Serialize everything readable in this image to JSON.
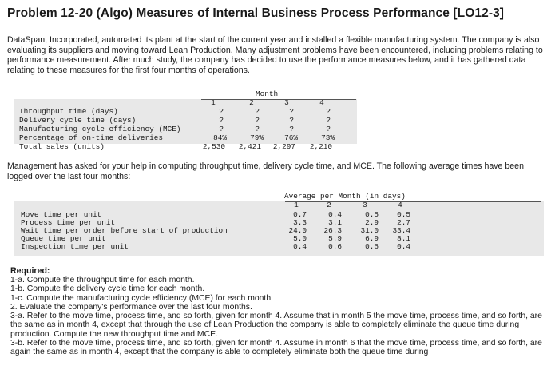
{
  "title": "Problem 12-20 (Algo) Measures of Internal Business Process Performance [LO12-3]",
  "intro": "DataSpan, Incorporated, automated its plant at the start of the current year and installed a flexible manufacturing system. The company is also evaluating its suppliers and moving toward Lean Production. Many adjustment problems have been encountered, including problems relating to performance measurement. After much study, the company has decided to use the performance measures below, and it has gathered data relating to these measures for the first four months of operations.",
  "table1": {
    "group_header": "Month",
    "months": [
      "1",
      "2",
      "3",
      "4"
    ],
    "rows": [
      {
        "label": "Throughput time (days)",
        "values": [
          "?",
          "?",
          "?",
          "?"
        ]
      },
      {
        "label": "Delivery cycle time (days)",
        "values": [
          "?",
          "?",
          "?",
          "?"
        ]
      },
      {
        "label": "Manufacturing cycle efficiency (MCE)",
        "values": [
          "?",
          "?",
          "?",
          "?"
        ]
      },
      {
        "label": "Percentage of on-time deliveries",
        "values": [
          "84%",
          "79%",
          "76%",
          "73%"
        ]
      },
      {
        "label": "Total sales (units)",
        "values": [
          "2,530",
          "2,421",
          "2,297",
          "2,210"
        ]
      }
    ]
  },
  "middle_text": "Management has asked for your help in computing throughput time, delivery cycle time, and MCE. The following average times have been logged over the last four months:",
  "table2": {
    "group_header": "Average per Month (in days)",
    "months": [
      "1",
      "2",
      "3",
      "4"
    ],
    "rows": [
      {
        "label": "Move time per unit",
        "values": [
          "0.7",
          "0.4",
          "0.5",
          "0.5"
        ]
      },
      {
        "label": "Process time per unit",
        "values": [
          "3.3",
          "3.1",
          "2.9",
          "2.7"
        ]
      },
      {
        "label": "Wait time per order before start of production",
        "values": [
          "24.0",
          "26.3",
          "31.0",
          "33.4"
        ]
      },
      {
        "label": "Queue time per unit",
        "values": [
          "5.0",
          "5.9",
          "6.9",
          "8.1"
        ]
      },
      {
        "label": "Inspection time per unit",
        "values": [
          "0.4",
          "0.6",
          "0.6",
          "0.4"
        ]
      }
    ]
  },
  "required": {
    "heading": "Required:",
    "items": [
      "1-a. Compute the throughput time for each month.",
      "1-b. Compute the delivery cycle time for each month.",
      "1-c. Compute the manufacturing cycle efficiency (MCE) for each month.",
      "2. Evaluate the company's performance over the last four months.",
      "3-a. Refer to the move time, process time, and so forth, given for month 4. Assume that in month 5 the move time, process time, and so forth, are the same as in month 4, except that through the use of Lean Production the company is able to completely eliminate the queue time during production. Compute the new throughput time and MCE.",
      "3-b. Refer to the move time, process time, and so forth, given for month 4. Assume in month 6 that the move time, process time, and so forth, are again the same as in month 4, except that the company is able to completely eliminate both the queue time during"
    ]
  }
}
